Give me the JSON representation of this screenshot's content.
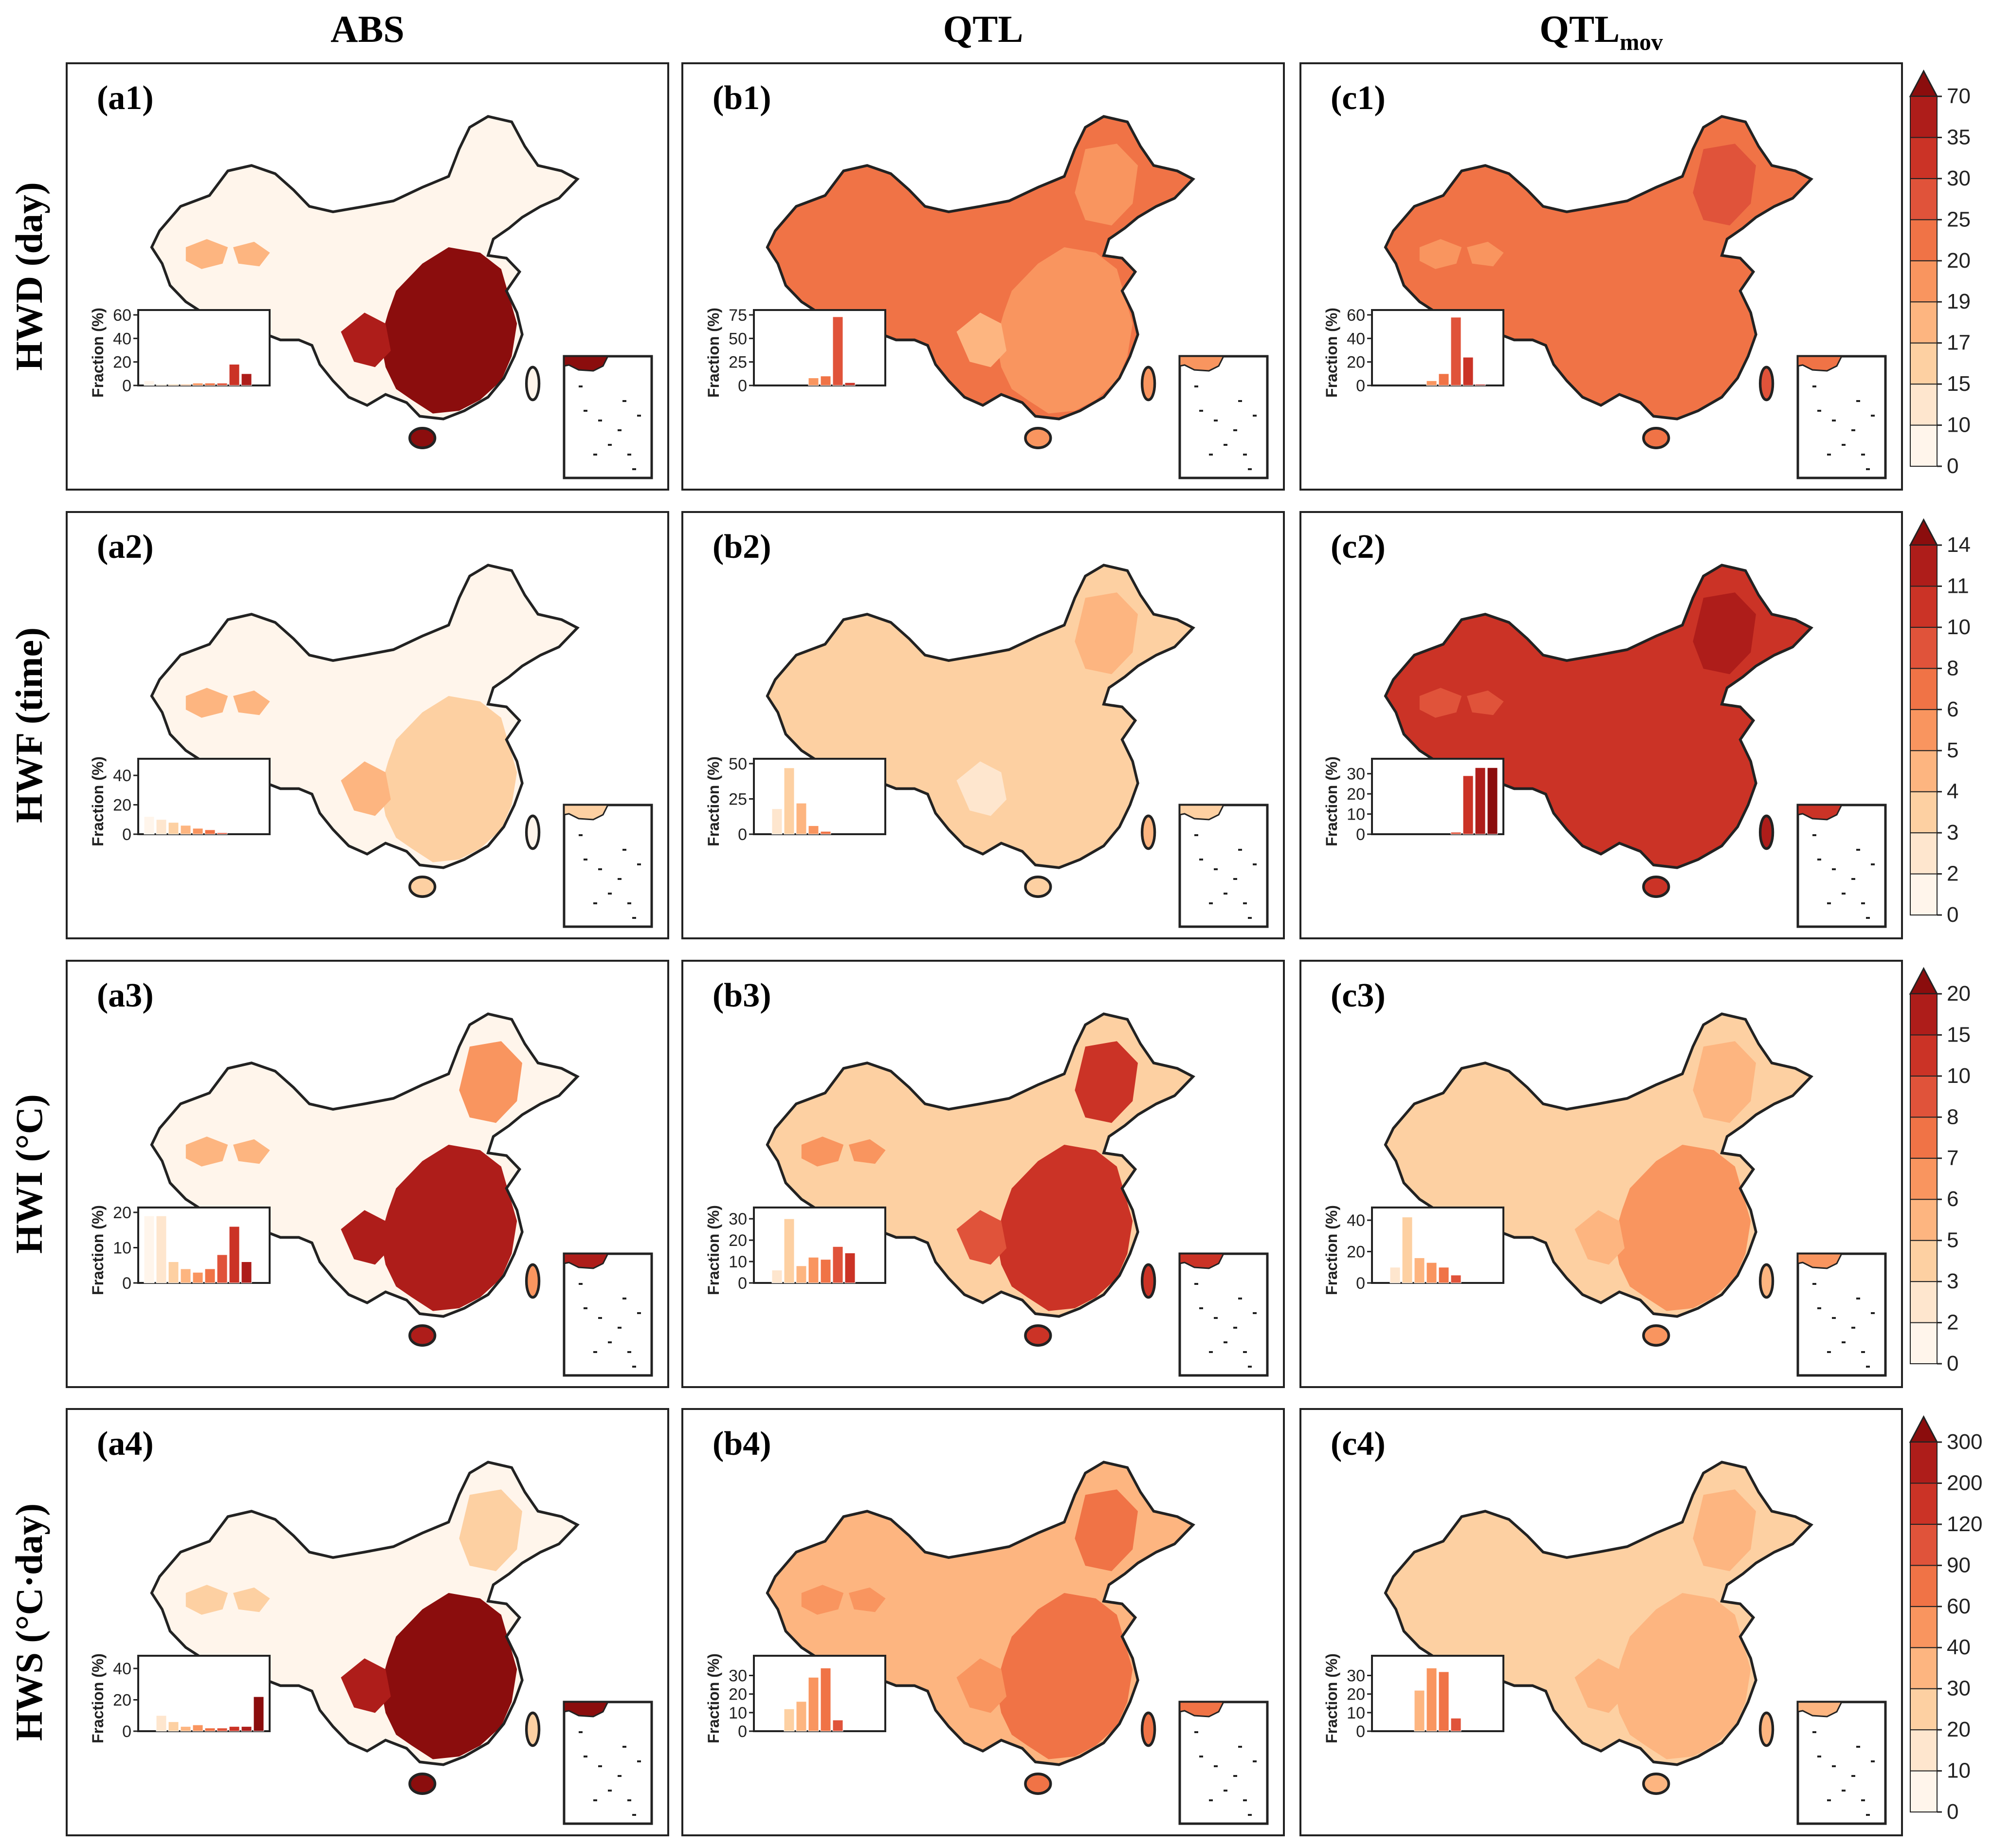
{
  "columns": [
    {
      "label": "ABS",
      "sub": ""
    },
    {
      "label": "QTL",
      "sub": ""
    },
    {
      "label": "QTL",
      "sub": "mov"
    }
  ],
  "rows": [
    {
      "label": "HWD (day)",
      "ticks": [
        "0",
        "10",
        "15",
        "17",
        "19",
        "20",
        "25",
        "30",
        "35",
        "70"
      ]
    },
    {
      "label": "HWF (time)",
      "ticks": [
        "0",
        "2",
        "3",
        "4",
        "5",
        "6",
        "8",
        "10",
        "11",
        "14"
      ]
    },
    {
      "label": "HWI (°C)",
      "ticks": [
        "0",
        "2",
        "3",
        "5",
        "6",
        "7",
        "8",
        "10",
        "15",
        "20"
      ]
    },
    {
      "label": "HWS (°C·day)",
      "ticks": [
        "0",
        "10",
        "20",
        "30",
        "40",
        "60",
        "90",
        "120",
        "200",
        "300"
      ]
    }
  ],
  "colors": {
    "ramp": [
      "#fff5eb",
      "#fee6ce",
      "#fdd0a2",
      "#fdb580",
      "#f9955f",
      "#f07346",
      "#e0533a",
      "#cb3326",
      "#ae1d1a",
      "#8b0d0d"
    ],
    "border": "#222222"
  },
  "inset_axis_label": "Fraction (%)",
  "chart_data": {
    "type": "bar",
    "description_note": "Inset histograms: fraction (%) of grid cells per colour-bar class (10 classes, colours = ramp index)",
    "panels": [
      {
        "id": "a1",
        "label": "(a1)",
        "yticks": [
          0,
          20,
          40,
          60
        ],
        "ylim": [
          0,
          60
        ],
        "values": [
          4,
          1,
          1,
          1,
          2,
          2,
          2,
          18,
          10,
          0
        ],
        "dominant": 8
      },
      {
        "id": "b1",
        "label": "(b1)",
        "yticks": [
          0,
          25,
          50,
          75
        ],
        "ylim": [
          0,
          75
        ],
        "values": [
          0,
          0,
          0,
          0,
          8,
          10,
          73,
          3,
          0,
          0
        ],
        "dominant": 5
      },
      {
        "id": "c1",
        "label": "(c1)",
        "yticks": [
          0,
          20,
          40,
          60
        ],
        "ylim": [
          0,
          60
        ],
        "values": [
          0,
          0,
          0,
          0,
          4,
          10,
          58,
          24,
          1,
          0
        ],
        "dominant": 5
      },
      {
        "id": "a2",
        "label": "(a2)",
        "yticks": [
          0,
          20,
          40
        ],
        "ylim": [
          0,
          48
        ],
        "values": [
          12,
          10,
          8,
          6,
          4,
          3,
          1,
          0,
          0,
          0
        ],
        "dominant": 0
      },
      {
        "id": "b2",
        "label": "(b2)",
        "yticks": [
          0,
          25,
          50
        ],
        "ylim": [
          0,
          50
        ],
        "values": [
          0,
          18,
          47,
          22,
          6,
          2,
          0,
          0,
          0,
          0
        ],
        "dominant": 2
      },
      {
        "id": "c2",
        "label": "(c2)",
        "yticks": [
          0,
          10,
          20,
          30
        ],
        "ylim": [
          0,
          35
        ],
        "values": [
          0,
          0,
          0,
          0,
          0,
          0,
          1,
          29,
          33,
          33
        ],
        "dominant": 8
      },
      {
        "id": "a3",
        "label": "(a3)",
        "yticks": [
          0,
          10,
          20
        ],
        "ylim": [
          0,
          20
        ],
        "values": [
          19,
          19,
          6,
          4,
          3,
          4,
          8,
          16,
          6,
          0
        ],
        "dominant": 0
      },
      {
        "id": "b3",
        "label": "(b3)",
        "yticks": [
          0,
          10,
          20,
          30
        ],
        "ylim": [
          0,
          33
        ],
        "values": [
          0,
          6,
          30,
          8,
          12,
          11,
          17,
          14,
          0,
          0
        ],
        "dominant": 4
      },
      {
        "id": "c3",
        "label": "(c3)",
        "yticks": [
          0,
          20,
          40
        ],
        "ylim": [
          0,
          45
        ],
        "values": [
          0,
          10,
          42,
          16,
          13,
          10,
          5,
          0,
          0,
          0
        ],
        "dominant": 2
      },
      {
        "id": "a4",
        "label": "(a4)",
        "yticks": [
          0,
          20,
          40
        ],
        "ylim": [
          0,
          45
        ],
        "values": [
          0,
          10,
          6,
          3,
          4,
          2,
          2,
          3,
          3,
          22
        ],
        "dominant": 9
      },
      {
        "id": "b4",
        "label": "(b4)",
        "yticks": [
          0,
          10,
          20,
          30
        ],
        "ylim": [
          0,
          38
        ],
        "values": [
          0,
          0,
          12,
          16,
          29,
          34,
          6,
          0,
          0,
          0
        ],
        "dominant": 4
      },
      {
        "id": "c4",
        "label": "(c4)",
        "yticks": [
          0,
          10,
          20,
          30
        ],
        "ylim": [
          0,
          38
        ],
        "values": [
          0,
          0,
          0,
          22,
          34,
          32,
          7,
          0,
          0,
          0
        ],
        "dominant": 3
      }
    ]
  }
}
